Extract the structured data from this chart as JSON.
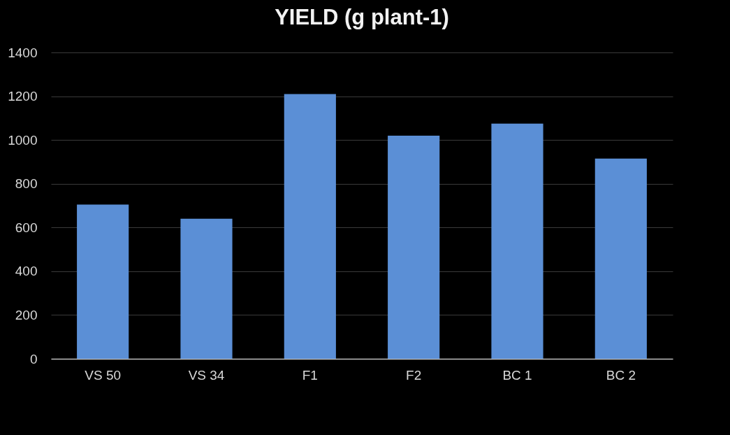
{
  "chart_data": {
    "type": "bar",
    "title": "YIELD (g plant-1)",
    "categories": [
      "VS 50",
      "VS 34",
      "F1",
      "F2",
      "BC 1",
      "BC 2"
    ],
    "values": [
      705,
      640,
      1210,
      1020,
      1075,
      915
    ],
    "color": "#5b8fd6",
    "ylim": [
      0,
      1400
    ],
    "yticks": [
      0,
      200,
      400,
      600,
      800,
      1000,
      1200,
      1400
    ],
    "grid": "y"
  }
}
